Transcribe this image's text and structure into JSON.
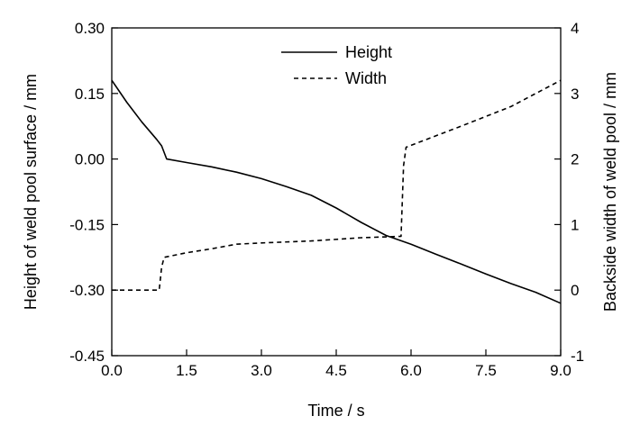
{
  "chart_data": {
    "type": "line",
    "title": "",
    "xlabel": "Time / s",
    "ylabel_left": "Height of weld pool surface / mm",
    "ylabel_right": "Backside width of weld pool / mm",
    "xlim": [
      0,
      9
    ],
    "ylim_left": [
      -0.45,
      0.3
    ],
    "ylim_right": [
      -1,
      4
    ],
    "x_ticks": [
      "0.0",
      "1.5",
      "3.0",
      "4.5",
      "6.0",
      "7.5",
      "9.0"
    ],
    "y_left_ticks": [
      "0.30",
      "0.15",
      "0.00",
      "-0.15",
      "-0.30",
      "-0.45"
    ],
    "y_right_ticks": [
      "4",
      "3",
      "2",
      "1",
      "0",
      "-1"
    ],
    "grid": false,
    "legend": "top-center",
    "series": [
      {
        "name": "Height",
        "axis": "left",
        "style": "solid",
        "x": [
          0.0,
          0.3,
          0.6,
          0.9,
          1.0,
          1.1,
          1.5,
          2.0,
          2.5,
          3.0,
          3.5,
          4.0,
          4.5,
          5.0,
          5.5,
          6.0,
          6.5,
          7.0,
          7.5,
          8.0,
          8.5,
          9.0
        ],
        "y": [
          0.18,
          0.13,
          0.085,
          0.045,
          0.03,
          0.0,
          -0.008,
          -0.018,
          -0.03,
          -0.045,
          -0.063,
          -0.083,
          -0.112,
          -0.145,
          -0.175,
          -0.195,
          -0.218,
          -0.24,
          -0.263,
          -0.285,
          -0.305,
          -0.33
        ]
      },
      {
        "name": "Width",
        "axis": "right",
        "style": "dashed",
        "x": [
          0.0,
          0.95,
          1.0,
          1.05,
          1.5,
          2.0,
          2.5,
          3.0,
          4.0,
          5.0,
          5.8,
          5.85,
          5.9,
          7.0,
          8.0,
          9.0
        ],
        "y": [
          0.0,
          0.0,
          0.35,
          0.5,
          0.57,
          0.63,
          0.7,
          0.72,
          0.75,
          0.8,
          0.82,
          1.9,
          2.18,
          2.5,
          2.8,
          3.2
        ]
      }
    ]
  }
}
